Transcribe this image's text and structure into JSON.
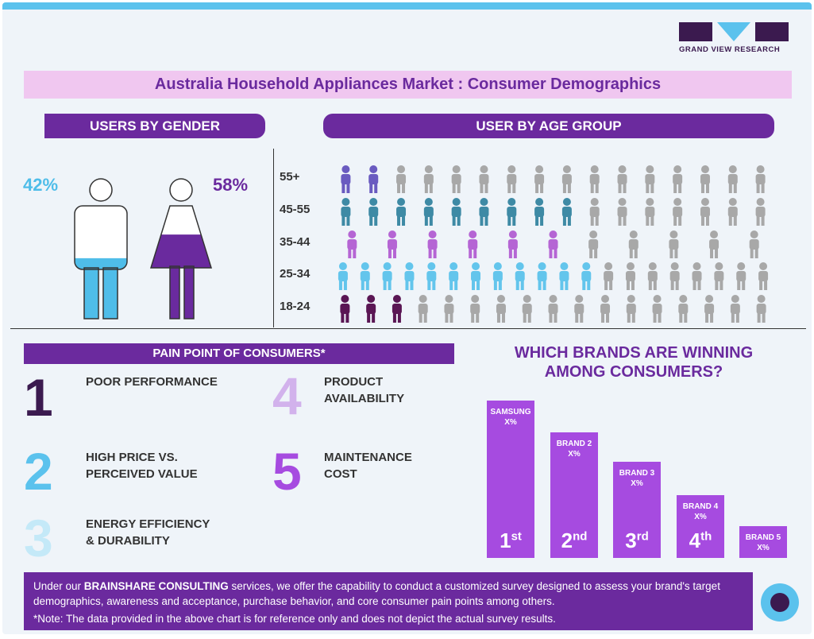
{
  "logo": {
    "text": "GRAND VIEW RESEARCH"
  },
  "title": "Australia Household Appliances Market : Consumer Demographics",
  "gender": {
    "header": "USERS BY GENDER",
    "male_pct": "42%",
    "female_pct": "58%",
    "male_fill": 0.42,
    "female_fill": 0.58
  },
  "age": {
    "header": "USER BY AGE GROUP",
    "rows": [
      {
        "label": "55+",
        "color": "#6a5bc0",
        "filled": 2,
        "total": 16
      },
      {
        "label": "45-55",
        "color": "#3e8aa5",
        "filled": 9,
        "total": 16
      },
      {
        "label": "35-44",
        "color": "#b565d4",
        "filled": 6,
        "total": 11
      },
      {
        "label": "25-34",
        "color": "#63c5ec",
        "filled": 12,
        "total": 20
      },
      {
        "label": "18-24",
        "color": "#5a1654",
        "filled": 3,
        "total": 17
      }
    ]
  },
  "pain": {
    "header": "PAIN POINT OF CONSUMERS*",
    "items": [
      {
        "num": "1",
        "color": "#3b1a4f",
        "text_1": "POOR PERFORMANCE",
        "text_2": ""
      },
      {
        "num": "2",
        "color": "#5bc2ed",
        "text_1": "HIGH PRICE VS.",
        "text_2": "PERCEIVED VALUE"
      },
      {
        "num": "3",
        "color": "#c4e9f8",
        "text_1": "ENERGY EFFICIENCY",
        "text_2": "& DURABILITY"
      },
      {
        "num": "4",
        "color": "#d2b2ec",
        "text_1": "PRODUCT",
        "text_2": "AVAILABILITY"
      },
      {
        "num": "5",
        "color": "#a64be0",
        "text_1": "MAINTENANCE",
        "text_2": "COST"
      }
    ]
  },
  "brands": {
    "title_1": "WHICH BRANDS ARE WINNING",
    "title_2": "AMONG CONSUMERS?",
    "items": [
      {
        "name": "SAMSUNG",
        "value": "X%",
        "rank": "1",
        "suffix": "st",
        "level": 1.0
      },
      {
        "name": "BRAND 2",
        "value": "X%",
        "rank": "2",
        "suffix": "nd",
        "level": 0.8
      },
      {
        "name": "BRAND 3",
        "value": "X%",
        "rank": "3",
        "suffix": "rd",
        "level": 0.61
      },
      {
        "name": "BRAND 4",
        "value": "X%",
        "rank": "4",
        "suffix": "th",
        "level": 0.4
      },
      {
        "name": "BRAND 5",
        "value": "X%",
        "rank": "",
        "suffix": "",
        "level": 0.2
      }
    ]
  },
  "footer": {
    "lead": "Under our ",
    "brand": "BRAINSHARE CONSULTING",
    "rest": " services, we offer the capability to conduct a customized survey designed to assess your brand's target demographics, awareness and acceptance, purchase behavior, and core consumer pain points among others.",
    "note": "*Note: The data provided in the above chart is for reference only and does not depict the actual survey results."
  }
}
